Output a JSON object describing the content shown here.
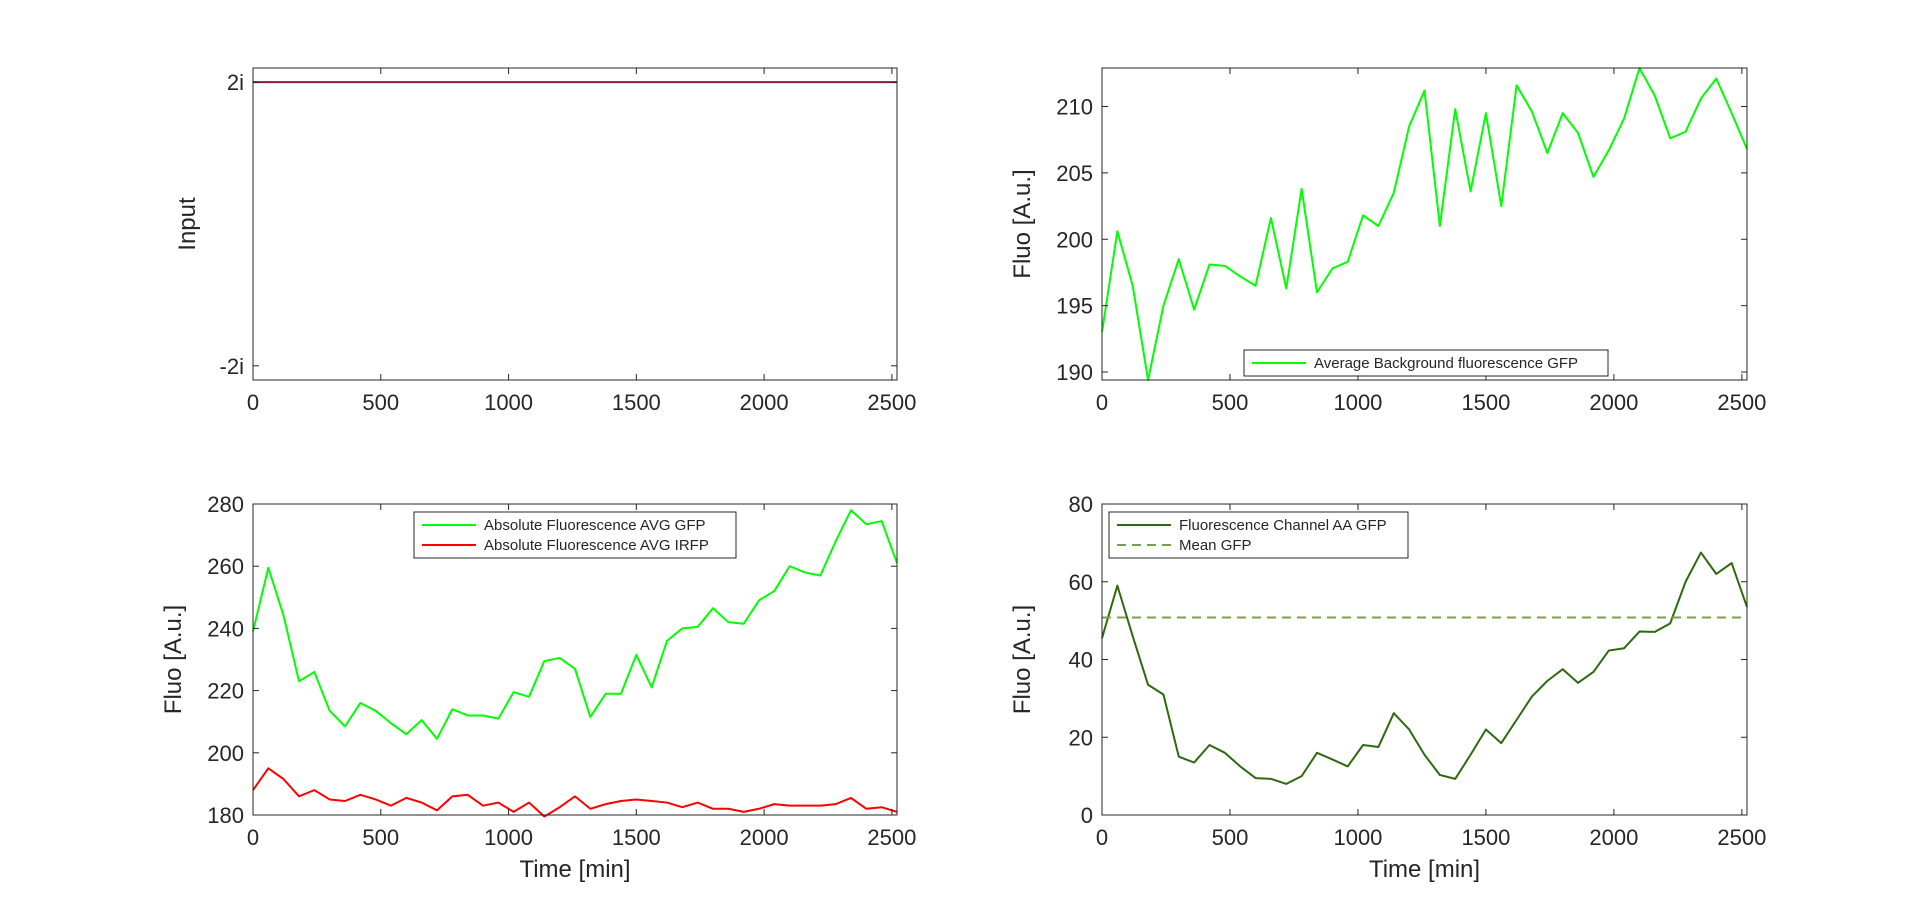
{
  "chart_data": [
    {
      "type": "line",
      "id": "input",
      "xlabel": "",
      "ylabel": "Input",
      "xlim": [
        0,
        2520
      ],
      "ylim": [
        -2.2,
        2.2
      ],
      "xticks": [
        0,
        500,
        1000,
        1500,
        2000,
        2500
      ],
      "xtick_labels": [
        "0",
        "500",
        "1000",
        "1500",
        "2000",
        "2500"
      ],
      "yticks": [
        2,
        -2
      ],
      "ytick_labels": [
        "2i",
        "-2i"
      ],
      "grid": false,
      "legend": null,
      "series": [
        {
          "color": "#8b1a3a",
          "style": "solid",
          "x": [
            0,
            2520
          ],
          "y": [
            2,
            2
          ]
        }
      ]
    },
    {
      "type": "line",
      "id": "background",
      "xlabel": "",
      "ylabel": "Fluo [A.u.]",
      "xlim": [
        0,
        2520
      ],
      "ylim": [
        189.4,
        212.9
      ],
      "xticks": [
        0,
        500,
        1000,
        1500,
        2000,
        2500
      ],
      "xtick_labels": [
        "0",
        "500",
        "1000",
        "1500",
        "2000",
        "2500"
      ],
      "yticks": [
        190,
        195,
        200,
        205,
        210
      ],
      "ytick_labels": [
        "190",
        "195",
        "200",
        "205",
        "210"
      ],
      "grid": false,
      "legend": "bottom-center",
      "series": [
        {
          "name": "Average Background fluorescence GFP",
          "color": "#00ff00",
          "style": "solid",
          "x": [
            0,
            60,
            120,
            180,
            240,
            300,
            360,
            420,
            480,
            540,
            600,
            660,
            720,
            780,
            840,
            900,
            960,
            1020,
            1080,
            1140,
            1200,
            1260,
            1320,
            1380,
            1440,
            1500,
            1560,
            1620,
            1680,
            1740,
            1800,
            1860,
            1920,
            1980,
            2040,
            2100,
            2160,
            2220,
            2280,
            2340,
            2400,
            2460,
            2520
          ],
          "y": [
            193.0,
            200.6,
            196.5,
            189.4,
            195.0,
            198.5,
            194.7,
            198.1,
            198.0,
            197.2,
            196.5,
            201.6,
            196.3,
            203.8,
            196.0,
            197.8,
            198.3,
            201.8,
            201.0,
            203.5,
            208.5,
            211.2,
            201.0,
            209.8,
            203.6,
            209.5,
            202.5,
            211.6,
            209.6,
            206.5,
            209.5,
            208.0,
            204.7,
            206.7,
            209.1,
            212.9,
            210.8,
            207.6,
            208.1,
            210.6,
            212.1,
            209.5,
            206.8
          ]
        }
      ]
    },
    {
      "type": "line",
      "id": "absolute",
      "xlabel": "Time [min]",
      "ylabel": "Fluo [A.u.]",
      "xlim": [
        0,
        2520
      ],
      "ylim": [
        180,
        280
      ],
      "xticks": [
        0,
        500,
        1000,
        1500,
        2000,
        2500
      ],
      "xtick_labels": [
        "0",
        "500",
        "1000",
        "1500",
        "2000",
        "2500"
      ],
      "yticks": [
        180,
        200,
        220,
        240,
        260,
        280
      ],
      "ytick_labels": [
        "180",
        "200",
        "220",
        "240",
        "260",
        "280"
      ],
      "grid": false,
      "legend": "top-right",
      "series": [
        {
          "name": "Absolute Fluorescence AVG  GFP",
          "color": "#00ff00",
          "style": "solid",
          "x": [
            0,
            60,
            120,
            180,
            240,
            300,
            360,
            420,
            480,
            540,
            600,
            660,
            720,
            780,
            840,
            900,
            960,
            1020,
            1080,
            1140,
            1200,
            1260,
            1320,
            1380,
            1440,
            1500,
            1560,
            1620,
            1680,
            1740,
            1800,
            1860,
            1920,
            1980,
            2040,
            2100,
            2160,
            2220,
            2280,
            2340,
            2400,
            2460,
            2520
          ],
          "y": [
            239,
            259.5,
            244,
            223,
            226,
            213.5,
            208.5,
            216,
            213.5,
            209.5,
            206,
            210.5,
            204.5,
            214,
            212,
            212,
            211,
            219.5,
            218,
            229.5,
            230.5,
            227,
            211.5,
            219,
            219,
            231.5,
            221,
            236,
            240,
            240.5,
            246.5,
            242,
            241.5,
            249,
            252,
            260,
            258,
            257,
            268,
            278,
            273.5,
            274.5,
            261
          ]
        },
        {
          "name": "Absolute Fluorescence AVG IRFP",
          "color": "#ff0000",
          "style": "solid",
          "x": [
            0,
            60,
            120,
            180,
            240,
            300,
            360,
            420,
            480,
            540,
            600,
            660,
            720,
            780,
            840,
            900,
            960,
            1020,
            1080,
            1140,
            1200,
            1260,
            1320,
            1380,
            1440,
            1500,
            1560,
            1620,
            1680,
            1740,
            1800,
            1860,
            1920,
            1980,
            2040,
            2100,
            2160,
            2220,
            2280,
            2340,
            2400,
            2460,
            2520
          ],
          "y": [
            188,
            195,
            191.5,
            186,
            188,
            185,
            184.5,
            186.5,
            185,
            183,
            185.5,
            184,
            181.5,
            186,
            186.5,
            183,
            184,
            181,
            184,
            179.5,
            182.5,
            186,
            182,
            183.5,
            184.5,
            185,
            184.5,
            184,
            182.5,
            184,
            182,
            182,
            181,
            182,
            183.5,
            183,
            183,
            183,
            183.5,
            185.5,
            182,
            182.5,
            181
          ]
        }
      ]
    },
    {
      "type": "line",
      "id": "channel",
      "xlabel": "Time [min]",
      "ylabel": "Fluo [A.u.]",
      "xlim": [
        0,
        2520
      ],
      "ylim": [
        0,
        80
      ],
      "xticks": [
        0,
        500,
        1000,
        1500,
        2000,
        2500
      ],
      "xtick_labels": [
        "0",
        "500",
        "1000",
        "1500",
        "2000",
        "2500"
      ],
      "yticks": [
        0,
        20,
        40,
        60,
        80
      ],
      "ytick_labels": [
        "0",
        "20",
        "40",
        "60",
        "80"
      ],
      "grid": false,
      "legend": "top-left",
      "series": [
        {
          "name": "Fluorescence Channel AA GFP",
          "color": "#2d6a0e",
          "style": "solid",
          "x": [
            0,
            60,
            120,
            180,
            240,
            300,
            360,
            420,
            480,
            540,
            600,
            660,
            720,
            780,
            840,
            900,
            960,
            1020,
            1080,
            1140,
            1200,
            1260,
            1320,
            1380,
            1440,
            1500,
            1560,
            1620,
            1680,
            1740,
            1800,
            1860,
            1920,
            1980,
            2040,
            2100,
            2160,
            2220,
            2280,
            2340,
            2400,
            2460,
            2520
          ],
          "y": [
            45.5,
            59,
            46,
            33.5,
            31,
            15,
            13.5,
            18,
            16,
            12.5,
            9.5,
            9.3,
            8,
            10,
            16,
            14.3,
            12.5,
            18,
            17.5,
            26.2,
            22,
            15.5,
            10.3,
            9.3,
            15.5,
            22,
            18.5,
            24.5,
            30.5,
            34.5,
            37.5,
            34,
            36.8,
            42.3,
            42.9,
            47.2,
            47.1,
            49.3,
            60,
            67.5,
            62,
            64.8,
            53.5
          ]
        },
        {
          "name": "Mean GFP",
          "color": "#77a348",
          "style": "dashed",
          "x": [
            0,
            2520
          ],
          "y": [
            50.8,
            50.8
          ]
        }
      ]
    }
  ]
}
